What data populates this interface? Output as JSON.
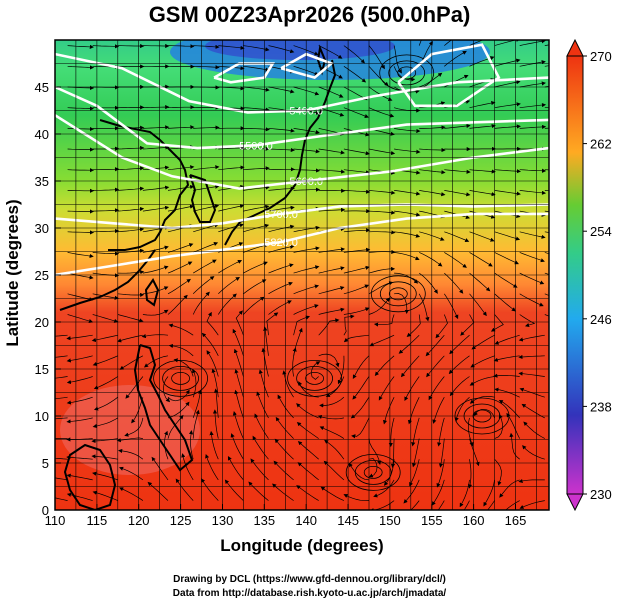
{
  "title": "GSM 00Z23Apr2026 (500.0hPa)",
  "xlabel": "Longitude (degrees)",
  "ylabel": "Latitude (degrees)",
  "credits": [
    "Drawing by DCL (https://www.gfd-dennou.org/library/dcl/)",
    "Data from http://database.rish.kyoto-u.ac.jp/arch/jmadata/"
  ],
  "map": {
    "lon_range": [
      110,
      169
    ],
    "lat_range": [
      0,
      50
    ],
    "lon_ticks": [
      110,
      115,
      120,
      125,
      130,
      135,
      140,
      145,
      150,
      155,
      160,
      165
    ],
    "lat_ticks": [
      0,
      5,
      10,
      15,
      20,
      25,
      30,
      35,
      40,
      45
    ],
    "grid": true
  },
  "colorbar": {
    "min": 230,
    "max": 270,
    "labels": [
      270,
      262,
      254,
      246,
      238,
      230
    ],
    "colors": [
      "#cc33cc",
      "#3344cc",
      "#33bbee",
      "#33cc66",
      "#ccdd22",
      "#ff8800",
      "#ee3311"
    ]
  },
  "contours": [
    {
      "label": "5400.0",
      "points": [
        [
          110,
          48.5
        ],
        [
          118,
          47
        ],
        [
          126,
          43.5
        ],
        [
          133,
          42.3
        ],
        [
          140,
          42.5
        ],
        [
          148,
          44
        ],
        [
          158,
          45.5
        ],
        [
          169,
          46
        ]
      ]
    },
    {
      "label": "5500.0",
      "points": [
        [
          110,
          45
        ],
        [
          115,
          43
        ],
        [
          121,
          39
        ],
        [
          127,
          38.5
        ],
        [
          134,
          38.8
        ],
        [
          142,
          39.8
        ],
        [
          152,
          41
        ],
        [
          162,
          41.3
        ],
        [
          169,
          41.5
        ]
      ]
    },
    {
      "label": "5600.0",
      "points": [
        [
          110,
          42
        ],
        [
          118,
          37.5
        ],
        [
          124,
          35.5
        ],
        [
          132,
          34.2
        ],
        [
          140,
          35
        ],
        [
          150,
          36
        ],
        [
          160,
          37.5
        ],
        [
          169,
          38.5
        ]
      ]
    },
    {
      "label": "5700.0",
      "points": [
        [
          110,
          31
        ],
        [
          117,
          30.5
        ],
        [
          124,
          30
        ],
        [
          130,
          30.5
        ],
        [
          137,
          31.5
        ],
        [
          144,
          32.3
        ],
        [
          152,
          32.5
        ],
        [
          160,
          32.3
        ],
        [
          169,
          32.5
        ]
      ]
    },
    {
      "label": "5820.0",
      "points": [
        [
          110,
          25
        ],
        [
          117,
          26
        ],
        [
          124,
          27
        ],
        [
          131,
          27.8
        ],
        [
          137,
          28.5
        ],
        [
          144,
          30
        ],
        [
          152,
          31
        ],
        [
          160,
          31.5
        ],
        [
          169,
          31.5
        ]
      ]
    },
    {
      "label": "",
      "points": [
        [
          129,
          46
        ],
        [
          132,
          47.5
        ],
        [
          136,
          47.5
        ],
        [
          135,
          46
        ],
        [
          131,
          45.5
        ],
        [
          129,
          46
        ]
      ]
    },
    {
      "label": "",
      "points": [
        [
          137,
          47
        ],
        [
          140,
          48.5
        ],
        [
          143,
          47.5
        ],
        [
          141,
          46
        ],
        [
          137,
          47
        ]
      ]
    },
    {
      "label": "",
      "points": [
        [
          151,
          45.5
        ],
        [
          155,
          48.5
        ],
        [
          161,
          49.5
        ],
        [
          163,
          46
        ],
        [
          158,
          43
        ],
        [
          153,
          43
        ],
        [
          151,
          45.5
        ]
      ]
    }
  ],
  "vortices": [
    {
      "lon": 152,
      "lat": 46.5
    },
    {
      "lon": 151,
      "lat": 23
    },
    {
      "lon": 125,
      "lat": 14
    },
    {
      "lon": 141,
      "lat": 14
    },
    {
      "lon": 161,
      "lat": 10
    },
    {
      "lon": 148,
      "lat": 4
    }
  ]
}
